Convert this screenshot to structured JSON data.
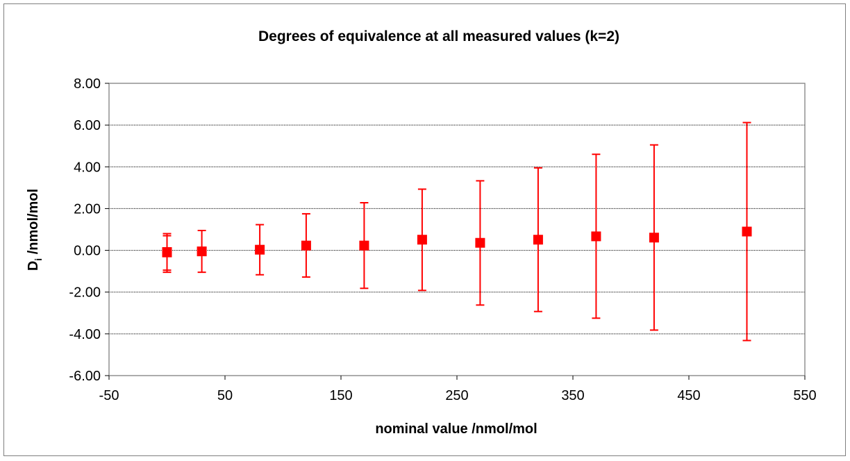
{
  "chart_data": {
    "type": "scatter",
    "title": "Degrees of equivalence at all measured values (k=2)",
    "xlabel": "nominal value /nmol/mol",
    "ylabel": {
      "main": "D",
      "subscript": "i",
      "unit": " /nmol/mol"
    },
    "xlim": [
      -50,
      550
    ],
    "ylim": [
      -6,
      8
    ],
    "x_ticks": [
      -50,
      50,
      150,
      250,
      350,
      450,
      550
    ],
    "y_ticks": [
      -6,
      -4,
      -2,
      0,
      2,
      4,
      6,
      8
    ],
    "x_tick_labels": [
      "-50",
      "50",
      "150",
      "250",
      "350",
      "450",
      "550"
    ],
    "y_tick_labels": [
      "-6.00",
      "-4.00",
      "-2.00",
      "0.00",
      "2.00",
      "4.00",
      "6.00",
      "8.00"
    ],
    "grid": {
      "horizontal": true,
      "vertical": false
    },
    "marker": "square",
    "color": "#ff0000",
    "points": [
      {
        "x": 0,
        "y": -0.1,
        "err_low": -1.05,
        "err_high": 0.8
      },
      {
        "x": 0,
        "y": -0.08,
        "err_low": -0.95,
        "err_high": 0.7
      },
      {
        "x": 30,
        "y": -0.05,
        "err_low": -1.05,
        "err_high": 0.95
      },
      {
        "x": 80,
        "y": 0.03,
        "err_low": -1.17,
        "err_high": 1.23
      },
      {
        "x": 120,
        "y": 0.23,
        "err_low": -1.28,
        "err_high": 1.75
      },
      {
        "x": 170,
        "y": 0.23,
        "err_low": -1.82,
        "err_high": 2.28
      },
      {
        "x": 220,
        "y": 0.51,
        "err_low": -1.92,
        "err_high": 2.93
      },
      {
        "x": 270,
        "y": 0.36,
        "err_low": -2.62,
        "err_high": 3.33
      },
      {
        "x": 320,
        "y": 0.51,
        "err_low": -2.93,
        "err_high": 3.95
      },
      {
        "x": 370,
        "y": 0.67,
        "err_low": -3.25,
        "err_high": 4.6
      },
      {
        "x": 420,
        "y": 0.61,
        "err_low": -3.82,
        "err_high": 5.05
      },
      {
        "x": 500,
        "y": 0.9,
        "err_low": -4.32,
        "err_high": 6.12
      }
    ]
  }
}
